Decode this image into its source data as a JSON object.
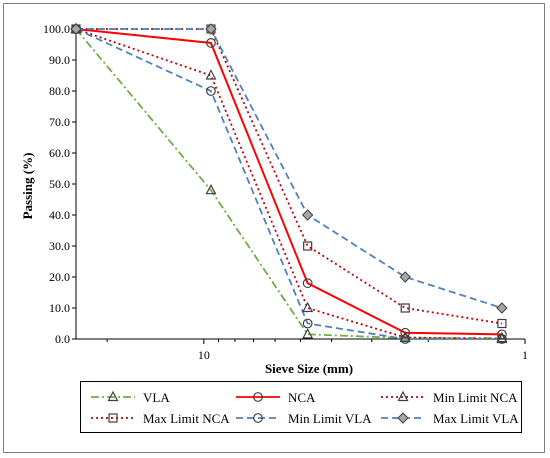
{
  "chart_data": {
    "type": "line",
    "title": "",
    "xlabel": "Sieve Size (mm)",
    "ylabel": "Passing (%)",
    "x_scale": "log-reversed",
    "xlim": [
      25,
      1
    ],
    "ylim": [
      0,
      100
    ],
    "x_tick_labels": [
      "10",
      "1"
    ],
    "y_tick_labels": [
      "0.0",
      "10.0",
      "20.0",
      "30.0",
      "40.0",
      "50.0",
      "60.0",
      "70.0",
      "80.0",
      "90.0",
      "100.0"
    ],
    "grid": false,
    "legend_position": "bottom",
    "x": [
      25,
      9.5,
      4.75,
      2.36,
      1.18
    ],
    "series": [
      {
        "name": "VLA",
        "values": [
          100,
          48,
          1.5,
          0.3,
          0.3
        ],
        "color": "#70ad47",
        "dash": "dashdot",
        "marker": "triangle"
      },
      {
        "name": "NCA",
        "values": [
          100,
          95.5,
          18,
          2,
          1.5
        ],
        "color": "#ff0000",
        "dash": "solid",
        "marker": "circle"
      },
      {
        "name": "Min Limit NCA",
        "values": [
          100,
          85,
          10,
          0.5,
          0
        ],
        "color": "#c00000",
        "dash": "dot",
        "marker": "triangle"
      },
      {
        "name": "Max Limit NCA",
        "values": [
          100,
          100,
          30,
          10,
          5
        ],
        "color": "#c00000",
        "dash": "dot",
        "marker": "square"
      },
      {
        "name": "Min Limit VLA",
        "values": [
          100,
          80,
          5,
          0,
          0
        ],
        "color": "#4f81bd",
        "dash": "dash",
        "marker": "circle"
      },
      {
        "name": "Max Limit VLA",
        "values": [
          100,
          100,
          40,
          20,
          10
        ],
        "color": "#4f81bd",
        "dash": "dash",
        "marker": "diamond"
      }
    ]
  }
}
